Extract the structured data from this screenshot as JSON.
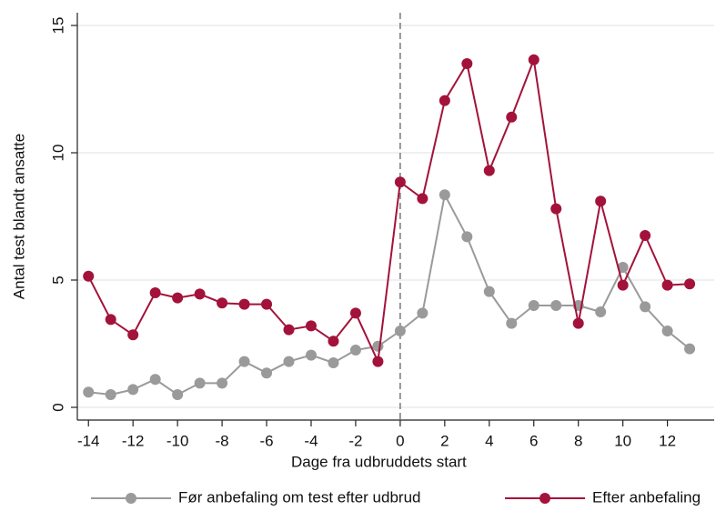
{
  "chart_data": {
    "type": "line",
    "x_label": "Dage fra udbruddets start",
    "y_label": "Antal test blandt ansatte",
    "x": [
      -14,
      -13,
      -12,
      -11,
      -10,
      -9,
      -8,
      -7,
      -6,
      -5,
      -4,
      -3,
      -2,
      -1,
      0,
      1,
      2,
      3,
      4,
      5,
      6,
      7,
      8,
      9,
      10,
      11,
      12,
      13
    ],
    "series": [
      {
        "name": "Før anbefaling om test efter udbrud",
        "color": "#9a9a9a",
        "values": [
          0.6,
          0.5,
          0.7,
          1.1,
          0.5,
          0.95,
          0.95,
          1.8,
          1.35,
          1.8,
          2.05,
          1.75,
          2.25,
          2.4,
          3.0,
          3.7,
          8.35,
          6.7,
          4.55,
          3.3,
          4.0,
          4.0,
          4.0,
          3.75,
          5.5,
          3.95,
          3.0,
          2.3
        ]
      },
      {
        "name": "Efter anbefaling",
        "color": "#a3123a",
        "values": [
          5.15,
          3.45,
          2.85,
          4.5,
          4.3,
          4.45,
          4.1,
          4.05,
          4.05,
          3.05,
          3.2,
          2.6,
          3.7,
          1.8,
          8.85,
          8.2,
          12.05,
          13.5,
          9.3,
          11.4,
          13.65,
          7.8,
          3.3,
          8.1,
          4.8,
          6.75,
          4.8,
          4.85
        ]
      }
    ],
    "xlim": [
      -14.5,
      14.1
    ],
    "xticks": [
      -14,
      -12,
      -10,
      -8,
      -6,
      -4,
      -2,
      0,
      2,
      4,
      6,
      8,
      10,
      12
    ],
    "ylim": [
      -0.5,
      15.5
    ],
    "yticks": [
      0,
      5,
      10,
      15
    ],
    "grid": true,
    "reference_line_x": 0,
    "legend_position": "bottom"
  }
}
